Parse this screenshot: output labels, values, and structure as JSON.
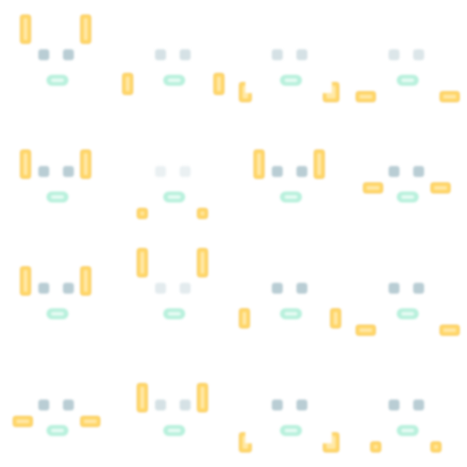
{
  "colors": {
    "background": "#ffffff",
    "eye": "#b9cdd4",
    "mouth": "#b8f0dc",
    "mouth_inner": "#e6fbf3",
    "hand": "#ffd76a",
    "hand_edge": "#f5c24a",
    "hand_inner": "#ffe9a8"
  },
  "grid": {
    "columns": 4,
    "rows": 4
  },
  "cells": [
    {
      "eye_visibility": 1.0,
      "hand_pose": "both-up-high"
    },
    {
      "eye_visibility": 0.6,
      "hand_pose": "both-low"
    },
    {
      "eye_visibility": 0.6,
      "hand_pose": "step-shapes-low"
    },
    {
      "eye_visibility": 0.5,
      "hand_pose": "flat-bars-low"
    },
    {
      "eye_visibility": 1.0,
      "hand_pose": "both-up-mid"
    },
    {
      "eye_visibility": 0.3,
      "hand_pose": "small-squares-low"
    },
    {
      "eye_visibility": 1.0,
      "hand_pose": "both-up-mid"
    },
    {
      "eye_visibility": 1.0,
      "hand_pose": "flat-bars-mid"
    },
    {
      "eye_visibility": 1.0,
      "hand_pose": "both-up-mid"
    },
    {
      "eye_visibility": 0.4,
      "hand_pose": "both-raised-top"
    },
    {
      "eye_visibility": 1.0,
      "hand_pose": "vertical-low"
    },
    {
      "eye_visibility": 1.0,
      "hand_pose": "flat-bars-low"
    },
    {
      "eye_visibility": 1.0,
      "hand_pose": "flat-bars-mid"
    },
    {
      "eye_visibility": 0.6,
      "hand_pose": "both-raised-mid"
    },
    {
      "eye_visibility": 1.0,
      "hand_pose": "step-shapes-bottom"
    },
    {
      "eye_visibility": 1.0,
      "hand_pose": "small-squares-bottom"
    }
  ]
}
